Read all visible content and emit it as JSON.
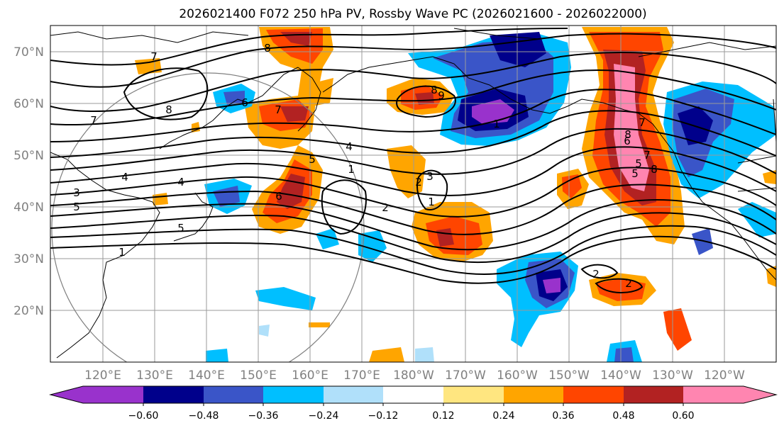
{
  "title": "2026021400 F072 250 hPa PV, Rossby Wave PC (2026021600 - 2026022000)",
  "lat_labels": [
    "70°N",
    "60°N",
    "50°N",
    "40°N",
    "30°N",
    "20°N"
  ],
  "lon_labels": [
    "120°E",
    "130°E",
    "140°E",
    "150°E",
    "160°E",
    "170°E",
    "180°W",
    "170°W",
    "160°W",
    "150°W",
    "140°W",
    "130°W",
    "120°W"
  ],
  "colorbar": {
    "colors": [
      "#9932cc",
      "#00008b",
      "#3a55c8",
      "#00bfff",
      "#b0e0fa",
      "#ffffff",
      "#ffe680",
      "#ffa500",
      "#ff4500",
      "#b22222",
      "#ff85b0"
    ],
    "tick_labels": [
      "−0.60",
      "−0.48",
      "−0.36",
      "−0.24",
      "−0.12",
      "0.12",
      "0.24",
      "0.36",
      "0.48",
      "0.60"
    ]
  },
  "contour_labels": [
    "7",
    "8",
    "8",
    "7",
    "7",
    "6",
    "6",
    "5",
    "4",
    "4",
    "4",
    "3",
    "5",
    "5",
    "1",
    "1",
    "2",
    "2",
    "3",
    "8",
    "9",
    "7",
    "6",
    "5",
    "7",
    "8",
    "2",
    "2",
    "1",
    "1",
    "5",
    "8"
  ],
  "colors": {
    "axis": "#000000",
    "grid": "#9a9a9a",
    "tick_label": "#808080",
    "contour": "#000000",
    "circle": "#808080",
    "coast": "#000000"
  }
}
